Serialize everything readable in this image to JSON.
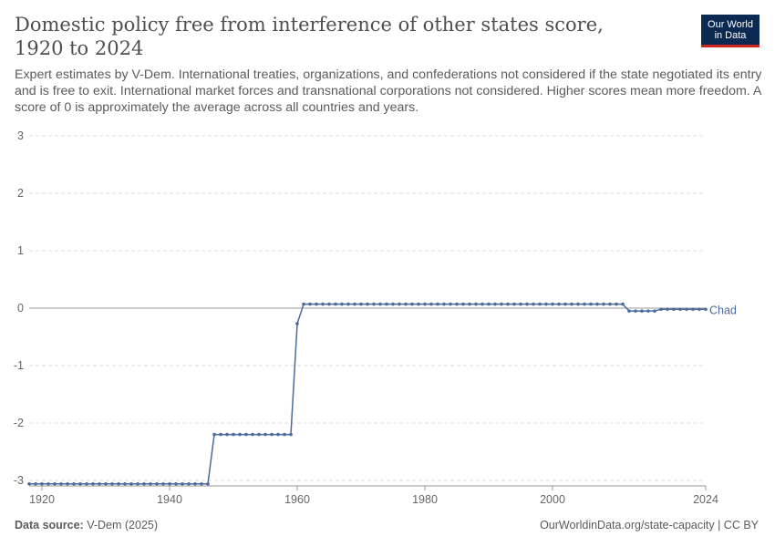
{
  "title": "Domestic policy free from interference of other states score, 1920 to 2024",
  "subtitle": "Expert estimates by V-Dem. International treaties, organizations, and confederations not considered if the state negotiated its entry and is free to exit. International market forces and transnational corporations not considered. Higher scores mean more freedom. A score of 0 is approximately the average across all countries and years.",
  "logo": {
    "line1": "Our World",
    "line2": "in Data"
  },
  "footer": {
    "source_label": "Data source:",
    "source_value": "V-Dem (2025)",
    "url": "OurWorldinData.org/state-capacity | CC BY"
  },
  "colors": {
    "series": "#4c6a9c",
    "grid": "#dddddd",
    "zero": "#999999",
    "axis_text": "#666666"
  },
  "chart_data": {
    "type": "line",
    "title": "Domestic policy free from interference of other states score, 1920 to 2024",
    "xlabel": "",
    "ylabel": "",
    "xlim": [
      1918,
      2024
    ],
    "ylim": [
      -3.1,
      3
    ],
    "y_ticks": [
      -3,
      -2,
      -1,
      0,
      1,
      2,
      3
    ],
    "x_ticks": [
      1920,
      1940,
      1960,
      1980,
      2000,
      2024
    ],
    "grid": true,
    "series": [
      {
        "name": "Chad",
        "segments": [
          {
            "from": 1918,
            "to": 1946,
            "value": -3.06
          },
          {
            "from": 1947,
            "to": 1959,
            "value": -2.2
          },
          {
            "from": 1960,
            "to": 1960,
            "value": -0.27
          },
          {
            "from": 1961,
            "to": 2011,
            "value": 0.07
          },
          {
            "from": 2012,
            "to": 2016,
            "value": -0.05
          },
          {
            "from": 2017,
            "to": 2024,
            "value": -0.02
          }
        ]
      }
    ]
  }
}
